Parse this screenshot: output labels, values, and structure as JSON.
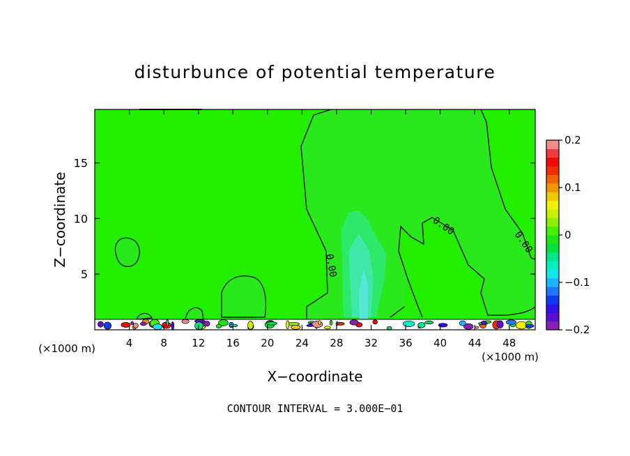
{
  "chart_data": {
    "type": "heatmap",
    "title": "disturbunce of potential temperature",
    "xlabel": "X−coordinate",
    "ylabel": "Z−coordinate",
    "x_unit_left": "(×1000 m)",
    "x_unit_right": "(×1000 m)",
    "xlim": [
      0,
      51
    ],
    "ylim": [
      0,
      19.8
    ],
    "x_ticks": [
      4,
      8,
      12,
      16,
      20,
      24,
      28,
      32,
      36,
      40,
      44,
      48
    ],
    "y_ticks": [
      5,
      10,
      15
    ],
    "colorbar": {
      "range": [
        -0.2,
        0.2
      ],
      "tick_values": [
        0.2,
        0.1,
        0,
        -0.1,
        -0.2
      ],
      "tick_labels": [
        "0.2",
        "0.1",
        "0",
        "−0.1",
        "−0.2"
      ],
      "colors": [
        "#8a1fb4",
        "#5a0fd0",
        "#2e12e6",
        "#0f3cf0",
        "#1e78ff",
        "#1fb4ff",
        "#14e6f0",
        "#00f0c0",
        "#00e68a",
        "#00e040",
        "#1ee614",
        "#46f000",
        "#8cf000",
        "#c8f000",
        "#f0f000",
        "#f0c800",
        "#f09600",
        "#f06400",
        "#f02d00",
        "#f00a0a",
        "#f03c3c",
        "#f08c8c"
      ]
    },
    "contour_interval_text": "CONTOUR INTERVAL = 3.000E−01",
    "contour_labels": [
      "0.00",
      "0.00",
      "0.00"
    ],
    "background_value": 0.01,
    "regions": [
      {
        "name": "large negative plume x 24–48, z 0.5–19.5",
        "value": -0.01
      },
      {
        "name": "cyan core x 28–33, z 0.5–10.5",
        "value": -0.04
      },
      {
        "name": "negative blob x 2–5, z 5.5–8.5",
        "value": -0.01
      },
      {
        "name": "negative blob x 14–19, z 0.5–5",
        "value": -0.01
      },
      {
        "name": "near-surface perturbation layer z 0–1.2",
        "value": 0.15
      }
    ]
  }
}
